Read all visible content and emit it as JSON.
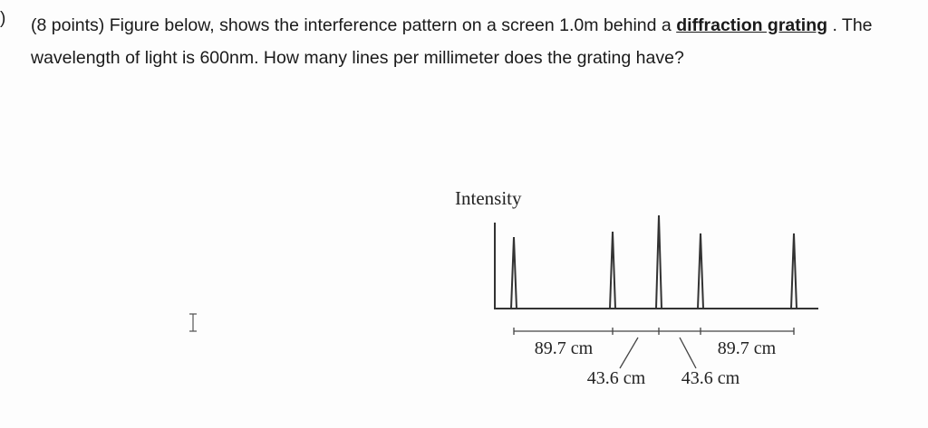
{
  "question": {
    "number": ")",
    "points": "(8 points)",
    "text_before": "Figure below, shows the interference pattern on a screen 1.0m behind a",
    "term": "diffraction grating",
    "text_after": ". The wavelength of light is 600nm. How many lines per millimeter does the grating have?"
  },
  "figure": {
    "axis_label": "Intensity",
    "dimensions": [
      "89.7 cm",
      "43.6 cm",
      "43.6 cm",
      "89.7 cm"
    ]
  }
}
